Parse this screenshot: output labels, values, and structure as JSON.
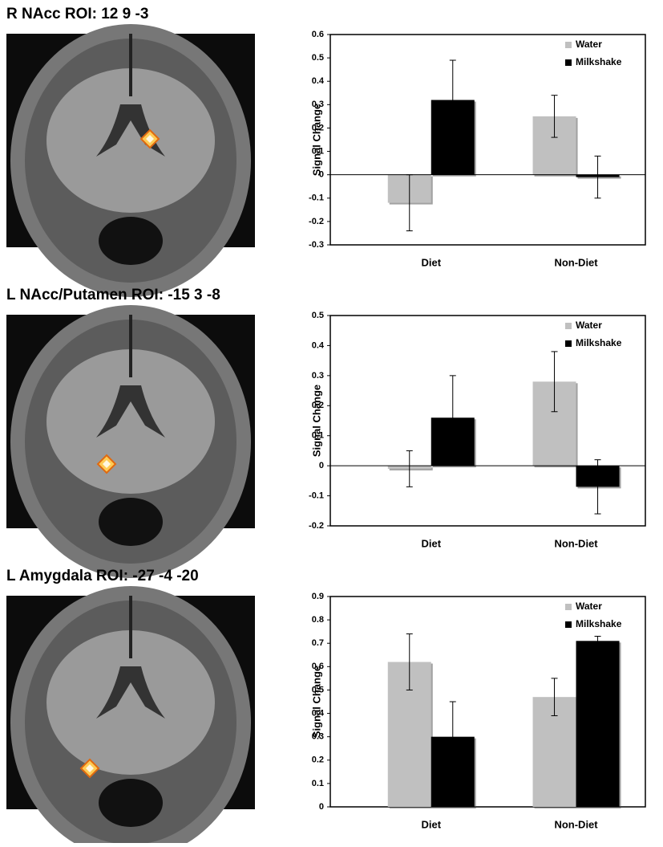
{
  "chart_data": [
    {
      "type": "bar",
      "title": "R NAcc ROI: 12 9 -3",
      "ylabel": "Signal Change",
      "categories": [
        "Diet",
        "Non-Diet"
      ],
      "series": [
        {
          "name": "Water",
          "color": "#c0c0c0",
          "values": [
            -0.12,
            0.25
          ],
          "errors": [
            0.12,
            0.09
          ]
        },
        {
          "name": "Milkshake",
          "color": "#000000",
          "values": [
            0.32,
            -0.01
          ],
          "errors": [
            0.17,
            0.09
          ]
        }
      ],
      "ylim": [
        -0.3,
        0.6
      ],
      "yticks": [
        -0.3,
        -0.2,
        -0.1,
        0,
        0.1,
        0.2,
        0.3,
        0.4,
        0.5,
        0.6
      ],
      "legend": "upper right"
    },
    {
      "type": "bar",
      "title": "L NAcc/Putamen ROI: -15 3 -8",
      "ylabel": "Signal Change",
      "categories": [
        "Diet",
        "Non-Diet"
      ],
      "series": [
        {
          "name": "Water",
          "color": "#c0c0c0",
          "values": [
            -0.01,
            0.28
          ],
          "errors": [
            0.06,
            0.1
          ]
        },
        {
          "name": "Milkshake",
          "color": "#000000",
          "values": [
            0.16,
            -0.07
          ],
          "errors": [
            0.14,
            0.09
          ]
        }
      ],
      "ylim": [
        -0.2,
        0.5
      ],
      "yticks": [
        -0.2,
        -0.1,
        0,
        0.1,
        0.2,
        0.3,
        0.4,
        0.5
      ],
      "legend": "upper right"
    },
    {
      "type": "bar",
      "title": "L Amygdala ROI: -27 -4 -20",
      "ylabel": "Signal Change",
      "categories": [
        "Diet",
        "Non-Diet"
      ],
      "series": [
        {
          "name": "Water",
          "color": "#c0c0c0",
          "values": [
            0.62,
            0.47
          ],
          "errors": [
            0.12,
            0.08
          ]
        },
        {
          "name": "Milkshake",
          "color": "#000000",
          "values": [
            0.3,
            0.71
          ],
          "errors": [
            0.15,
            0.02
          ]
        }
      ],
      "ylim": [
        0,
        0.9
      ],
      "yticks": [
        0,
        0.1,
        0.2,
        0.3,
        0.4,
        0.5,
        0.6,
        0.7,
        0.8,
        0.9
      ],
      "legend": "upper right"
    }
  ]
}
